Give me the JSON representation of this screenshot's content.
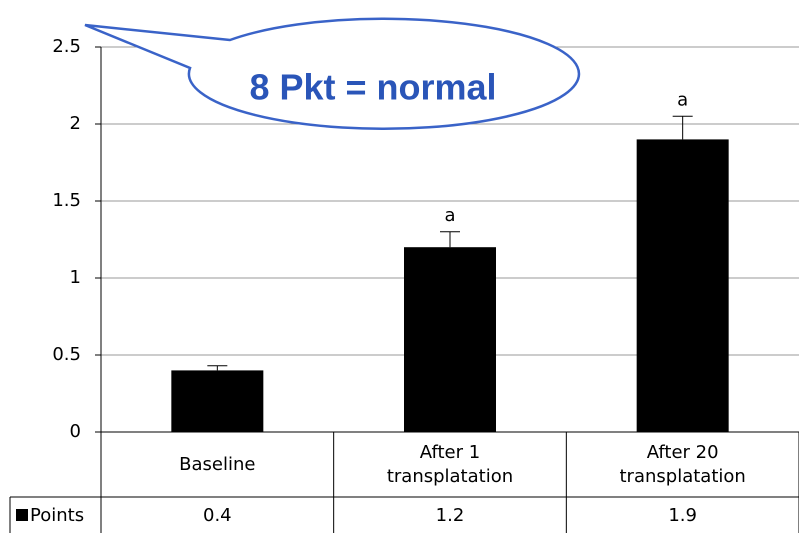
{
  "chart_data": {
    "type": "bar",
    "callout": "8 Pkt = normal",
    "categories": [
      "Baseline",
      "After 1 transplatation",
      "After 20 transplatation"
    ],
    "series": [
      {
        "name": "Points",
        "color": "#000000",
        "values": [
          0.4,
          1.2,
          1.9
        ],
        "errors": [
          0.03,
          0.1,
          0.15
        ]
      }
    ],
    "annotations": [
      {
        "category": "After 1 transplatation",
        "text": "a"
      },
      {
        "category": "After 20 transplatation",
        "text": "a"
      }
    ],
    "ylim": [
      0,
      2.5
    ],
    "yticks": [
      0,
      0.5,
      1,
      1.5,
      2,
      2.5
    ],
    "grid": true,
    "legend": "table"
  }
}
